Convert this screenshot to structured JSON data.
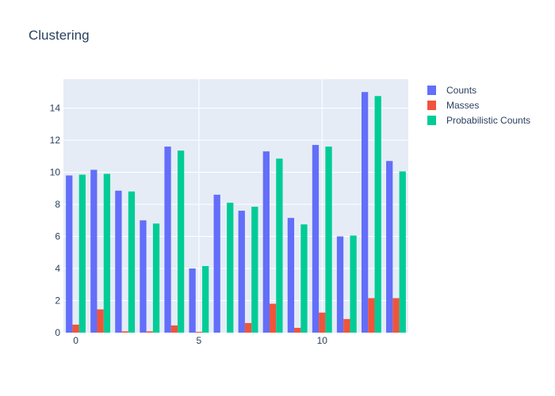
{
  "chart_data": {
    "type": "bar",
    "title": "Clustering",
    "xlabel": "",
    "ylabel": "",
    "x": [
      0,
      1,
      2,
      3,
      4,
      5,
      6,
      7,
      8,
      9,
      10,
      11,
      12,
      13
    ],
    "x_ticks": [
      0,
      5,
      10
    ],
    "xlim": [
      -0.5,
      13.5
    ],
    "y_ticks": [
      0,
      2,
      4,
      6,
      8,
      10,
      12,
      14
    ],
    "ylim": [
      0,
      15.8
    ],
    "grid": true,
    "legend_position": "top-right",
    "series": [
      {
        "name": "Counts",
        "color": "#636efa",
        "values": [
          9.8,
          10.15,
          8.85,
          7.0,
          11.6,
          4.0,
          8.6,
          7.6,
          11.3,
          7.15,
          11.7,
          6.0,
          15.0,
          10.7
        ]
      },
      {
        "name": "Masses",
        "color": "#ef553b",
        "values": [
          0.5,
          1.45,
          0.08,
          0.08,
          0.45,
          0.05,
          0.0,
          0.6,
          1.8,
          0.3,
          1.25,
          0.85,
          2.15,
          2.15
        ]
      },
      {
        "name": "Probabilistic Counts",
        "color": "#00cc96",
        "values": [
          9.85,
          9.9,
          8.8,
          6.8,
          11.35,
          4.15,
          8.1,
          7.85,
          10.85,
          6.75,
          11.6,
          6.05,
          14.75,
          10.05
        ]
      }
    ]
  },
  "colors": {
    "plot_background": "#e5ecf6",
    "text": "#2a3f5f"
  }
}
